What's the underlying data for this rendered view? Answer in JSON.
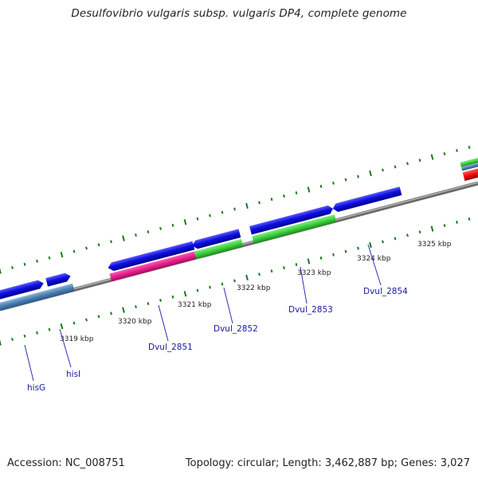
{
  "title": "Desulfovibrio vulgaris subsp. vulgaris DP4, complete genome",
  "footer": {
    "accession": "Accession: NC_008751",
    "summary": "Topology: circular; Length: 3,462,887 bp; Genes: 3,027"
  },
  "kbp_labels": [
    "3319 kbp",
    "3320 kbp",
    "3321 kbp",
    "3322 kbp",
    "3323 kbp",
    "3324 kbp",
    "3325 kbp"
  ],
  "gene_labels": [
    "hisG",
    "hisI",
    "Dvul_2851",
    "Dvul_2852",
    "Dvul_2853",
    "Dvul_2854"
  ],
  "colors": {
    "forward_cds": "#1010e0",
    "rna_pink": "#e81e8c",
    "gene_green": "#3ccf3c",
    "gene_steelblue": "#4a7fb0",
    "gene_red": "#e81010",
    "backbone": "#8a8a8a",
    "tick": "#1a7a1a",
    "label": "#1a1a9c"
  }
}
